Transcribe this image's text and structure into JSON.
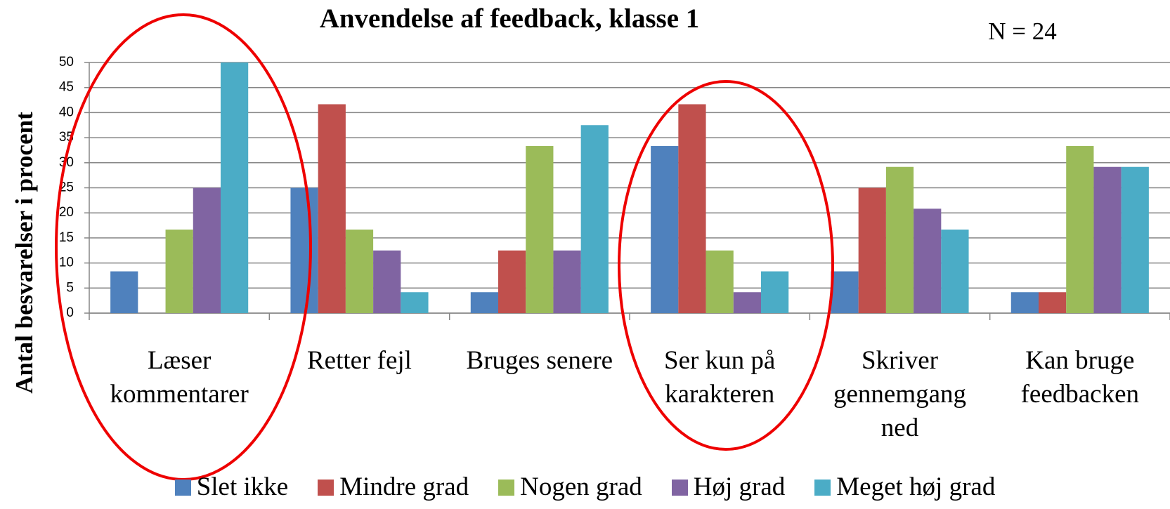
{
  "chart_data": {
    "type": "bar",
    "title": "Anvendelse af feedback, klasse 1",
    "annotation": "N = 24",
    "y_label": "Antal besvarelser i procent",
    "categories": [
      "Læser kommentarer",
      "Retter fejl",
      "Bruges senere",
      "Ser kun på karakteren",
      "Skriver gennemgang ned",
      "Kan bruge feedbacken"
    ],
    "series": [
      {
        "name": "Slet ikke",
        "color": "#4f81bd",
        "values": [
          8.33,
          25,
          4.17,
          33.33,
          8.33,
          4.17
        ]
      },
      {
        "name": "Mindre grad",
        "color": "#c0504d",
        "values": [
          0,
          41.67,
          12.5,
          41.67,
          25,
          4.17
        ]
      },
      {
        "name": "Nogen grad",
        "color": "#9bbb59",
        "values": [
          16.67,
          16.67,
          33.33,
          12.5,
          29.17,
          33.33
        ]
      },
      {
        "name": "Høj grad",
        "color": "#8064a2",
        "values": [
          25,
          12.5,
          12.5,
          4.17,
          20.83,
          29.17
        ]
      },
      {
        "name": "Meget høj grad",
        "color": "#4bacc6",
        "values": [
          50,
          4.17,
          37.5,
          8.33,
          16.67,
          29.17
        ]
      }
    ],
    "ylim": [
      0,
      50
    ],
    "yticks": [
      0,
      5,
      10,
      15,
      20,
      25,
      30,
      35,
      40,
      45,
      50
    ],
    "grid": true
  }
}
